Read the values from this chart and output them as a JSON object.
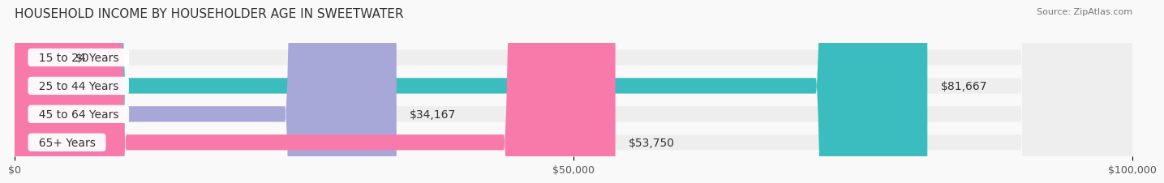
{
  "title": "HOUSEHOLD INCOME BY HOUSEHOLDER AGE IN SWEETWATER",
  "source": "Source: ZipAtlas.com",
  "categories": [
    "15 to 24 Years",
    "25 to 44 Years",
    "45 to 64 Years",
    "65+ Years"
  ],
  "values": [
    0,
    81667,
    34167,
    53750
  ],
  "bar_colors": [
    "#c9a8d4",
    "#3bbcbe",
    "#a8a8d8",
    "#f87aaa"
  ],
  "bar_bg_color": "#eeeeee",
  "value_labels": [
    "$0",
    "$81,667",
    "$34,167",
    "$53,750"
  ],
  "xlim": [
    0,
    100000
  ],
  "xtick_values": [
    0,
    50000,
    100000
  ],
  "xtick_labels": [
    "$0",
    "$50,000",
    "$100,000"
  ],
  "background_color": "#f9f9f9",
  "title_fontsize": 11,
  "label_fontsize": 10,
  "tick_fontsize": 9,
  "source_fontsize": 8
}
